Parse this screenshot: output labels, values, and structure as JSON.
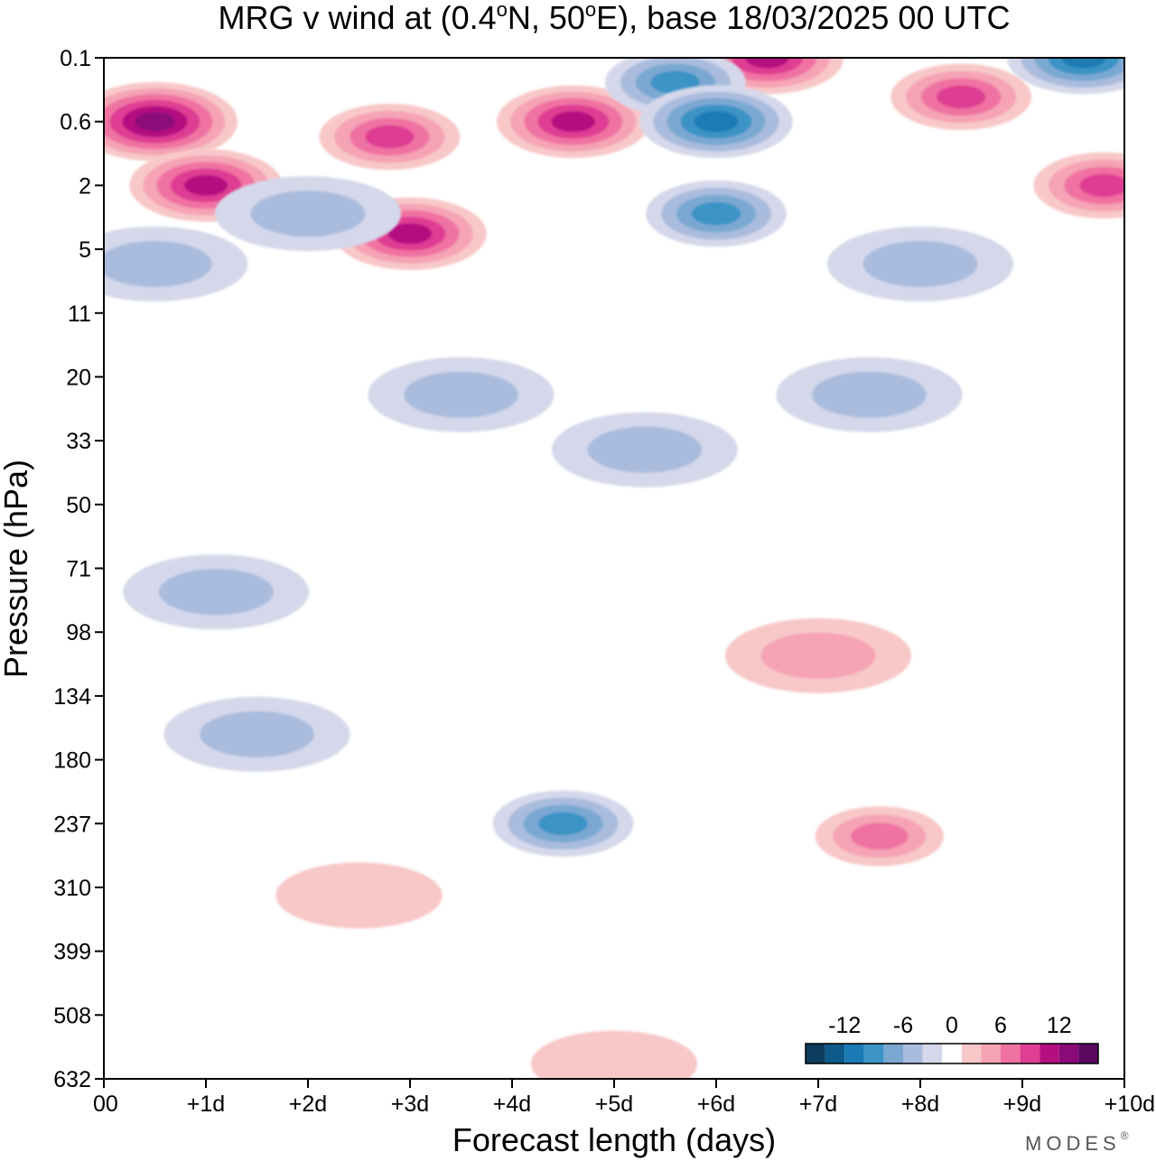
{
  "chart_data": {
    "type": "heatmap",
    "title": "MRG v wind at (0.4°N, 50°E),  base 18/03/2025  00 UTC",
    "title_parts": {
      "prefix": "MRG v wind at (0.4",
      "deg1": "o",
      "mid": "N, 50",
      "deg2": "o",
      "suffix": "E),  base 18/03/2025  00 UTC"
    },
    "xlabel": "Forecast length (days)",
    "ylabel": "Pressure (hPa)",
    "x_ticks": [
      "00",
      "+1d",
      "+2d",
      "+3d",
      "+4d",
      "+5d",
      "+6d",
      "+7d",
      "+8d",
      "+9d",
      "+10d"
    ],
    "x_values_days": [
      0,
      1,
      2,
      3,
      4,
      5,
      6,
      7,
      8,
      9,
      10
    ],
    "y_ticks": [
      "0.1",
      "0.6",
      "2",
      "5",
      "11",
      "20",
      "33",
      "50",
      "71",
      "98",
      "134",
      "180",
      "237",
      "310",
      "399",
      "508",
      "632"
    ],
    "y_values_hpa": [
      0.1,
      0.6,
      2,
      5,
      11,
      20,
      33,
      50,
      71,
      98,
      134,
      180,
      237,
      310,
      399,
      508,
      632
    ],
    "y_axis_note": "pressure increases downward",
    "xlim_days": [
      0,
      10
    ],
    "ylim_hpa": [
      0.1,
      632
    ],
    "colorbar": {
      "labels": [
        "-12",
        "-6",
        "0",
        "6",
        "12"
      ],
      "levels": [
        -18,
        -15,
        -12,
        -9,
        -6,
        -3,
        3,
        6,
        9,
        12,
        15,
        18
      ],
      "colors": [
        "#0d3d5e",
        "#0e5a8a",
        "#1a7ab5",
        "#3b93c6",
        "#7aa8d2",
        "#a9bcdd",
        "#d5d8ea",
        "#ffffff",
        "#f8c8c8",
        "#f5a3b5",
        "#f072a2",
        "#de3e93",
        "#b30f80",
        "#8a0a7a",
        "#5a0860"
      ]
    },
    "features": [
      {
        "sign": "positive",
        "peak_value": 18,
        "day": 0.5,
        "level_hpa": 0.6
      },
      {
        "sign": "positive",
        "peak_value": 15,
        "day": 1.0,
        "level_hpa": 2
      },
      {
        "sign": "positive",
        "peak_value": 12,
        "day": 2.8,
        "level_hpa": 0.8
      },
      {
        "sign": "positive",
        "peak_value": 15,
        "day": 3.0,
        "level_hpa": 4
      },
      {
        "sign": "positive",
        "peak_value": 15,
        "day": 4.6,
        "level_hpa": 0.6
      },
      {
        "sign": "positive",
        "peak_value": 15,
        "day": 6.5,
        "level_hpa": 0.1
      },
      {
        "sign": "positive",
        "peak_value": 12,
        "day": 8.4,
        "level_hpa": 0.3
      },
      {
        "sign": "positive",
        "peak_value": 12,
        "day": 9.8,
        "level_hpa": 2
      },
      {
        "sign": "negative",
        "peak_value": -12,
        "day": 5.6,
        "level_hpa": 0.2
      },
      {
        "sign": "negative",
        "peak_value": -15,
        "day": 6.0,
        "level_hpa": 0.6
      },
      {
        "sign": "negative",
        "peak_value": -12,
        "day": 6.0,
        "level_hpa": 3
      },
      {
        "sign": "negative",
        "peak_value": -15,
        "day": 9.6,
        "level_hpa": 0.1
      },
      {
        "sign": "negative",
        "peak_value": -6,
        "day": 2.0,
        "level_hpa": 3
      },
      {
        "sign": "negative",
        "peak_value": -6,
        "day": 0.5,
        "level_hpa": 6
      },
      {
        "sign": "negative",
        "peak_value": -6,
        "day": 8.0,
        "level_hpa": 6
      },
      {
        "sign": "negative",
        "peak_value": -6,
        "day": 3.5,
        "level_hpa": 23
      },
      {
        "sign": "negative",
        "peak_value": -6,
        "day": 5.3,
        "level_hpa": 35
      },
      {
        "sign": "negative",
        "peak_value": -6,
        "day": 7.5,
        "level_hpa": 23
      },
      {
        "sign": "negative",
        "peak_value": -6,
        "day": 1.1,
        "level_hpa": 80
      },
      {
        "sign": "negative",
        "peak_value": -6,
        "day": 1.5,
        "level_hpa": 160
      },
      {
        "sign": "negative",
        "peak_value": -12,
        "day": 4.5,
        "level_hpa": 237
      },
      {
        "sign": "positive",
        "peak_value": 6,
        "day": 7.0,
        "level_hpa": 110
      },
      {
        "sign": "positive",
        "peak_value": 9,
        "day": 7.6,
        "level_hpa": 250
      },
      {
        "sign": "positive",
        "peak_value": 3,
        "day": 2.5,
        "level_hpa": 320
      },
      {
        "sign": "positive",
        "peak_value": 3,
        "day": 5.0,
        "level_hpa": 600
      }
    ]
  },
  "brand": {
    "name": "MODES",
    "mark": "®"
  },
  "colors": {
    "axis": "#000000",
    "background": "#ffffff"
  }
}
